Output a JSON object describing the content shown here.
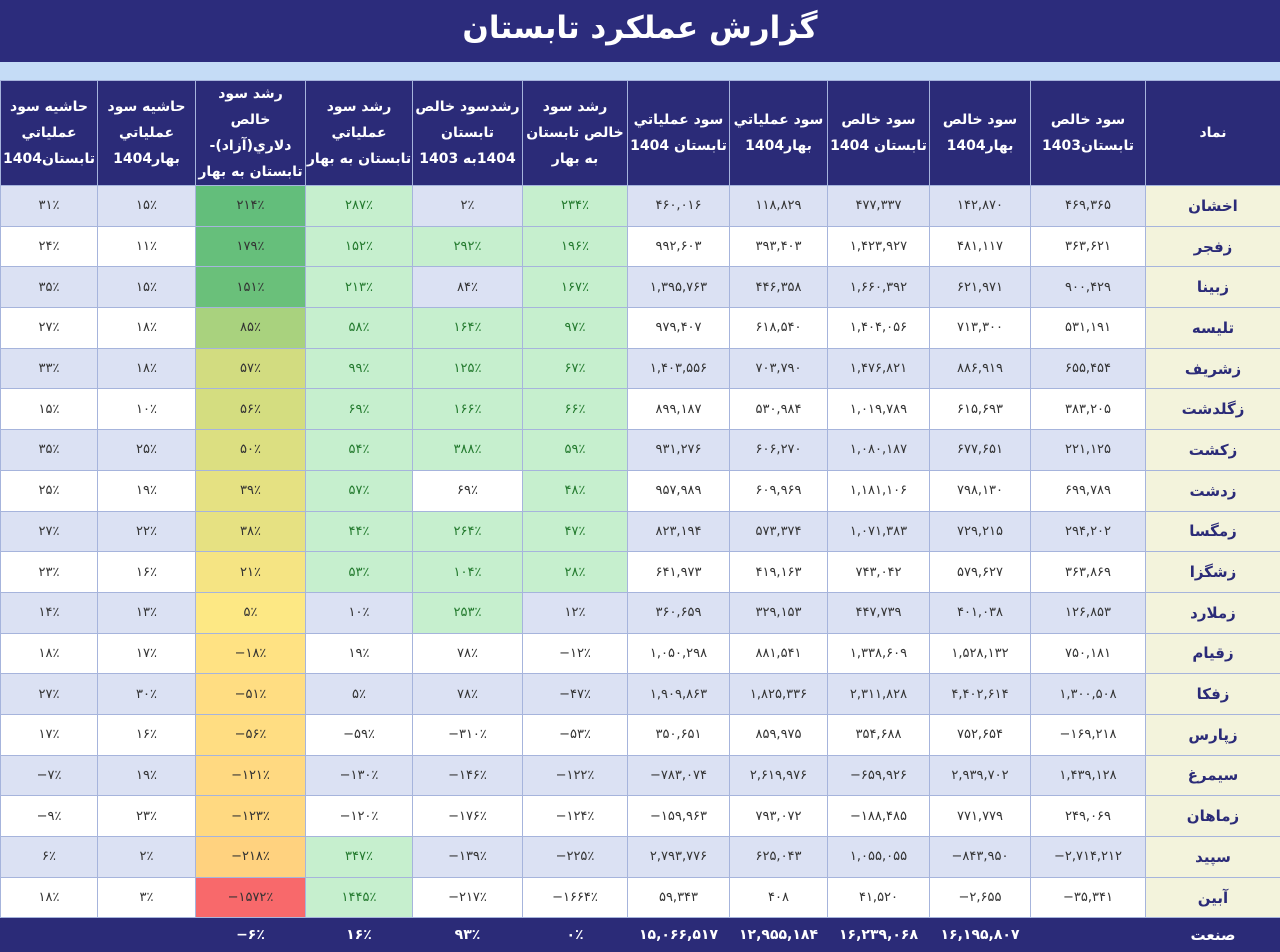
{
  "title": "گزارش عملکرد تابستان",
  "colors": {
    "header_bg": "#2b2b78",
    "row_alt": "#dbe1f3",
    "symbol_bg": "#f3f3dc",
    "positive_fill": "#c6efce",
    "positive_text": "#237a2e"
  },
  "columns": [
    "نماد",
    "سود خالص تابستان1403",
    "سود خالص بهار1404",
    "سود خالص تابستان 1404",
    "سود عملياتي بهار1404",
    "سود عملياتي تابستان 1404",
    "رشد سود خالص تابستان به بهار",
    "رشدسود خالص تابستان 1404به 1403",
    "رشد سود عملياتي تابستان به بهار",
    "رشد سود خالص دلاري(آزاد)- تابستان به بهار",
    "حاشيه سود عملياتي بهار1404",
    "حاشيه سود عملياتي تابستان1404"
  ],
  "rows": [
    {
      "cells": [
        "اخشان",
        "۴۶۹,۳۶۵",
        "۱۴۲,۸۷۰",
        "۴۷۷,۳۳۷",
        "۱۱۸,۸۲۹",
        "۴۶۰,۰۱۶",
        "۲۳۴٪",
        "۲٪",
        "۲۸۷٪",
        "۲۱۴٪",
        "۱۵٪",
        "۳۱٪"
      ],
      "highlight": [
        6,
        8
      ],
      "dollar_color": "#63be7b"
    },
    {
      "cells": [
        "زفجر",
        "۳۶۳,۶۲۱",
        "۴۸۱,۱۱۷",
        "۱,۴۲۳,۹۲۷",
        "۳۹۳,۴۰۳",
        "۹۹۲,۶۰۳",
        "۱۹۶٪",
        "۲۹۲٪",
        "۱۵۲٪",
        "۱۷۹٪",
        "۱۱٪",
        "۲۴٪"
      ],
      "highlight": [
        6,
        7,
        8
      ],
      "dollar_color": "#66bf7b"
    },
    {
      "cells": [
        "زبينا",
        "۹۰۰,۴۲۹",
        "۶۲۱,۹۷۱",
        "۱,۶۶۰,۳۹۲",
        "۴۴۶,۳۵۸",
        "۱,۳۹۵,۷۶۳",
        "۱۶۷٪",
        "۸۴٪",
        "۲۱۳٪",
        "۱۵۱٪",
        "۱۵٪",
        "۳۵٪"
      ],
      "highlight": [
        6,
        8
      ],
      "dollar_color": "#6ac07a"
    },
    {
      "cells": [
        "تليسه",
        "۵۳۱,۱۹۱",
        "۷۱۳,۳۰۰",
        "۱,۴۰۴,۰۵۶",
        "۶۱۸,۵۴۰",
        "۹۷۹,۴۰۷",
        "۹۷٪",
        "۱۶۴٪",
        "۵۸٪",
        "۸۵٪",
        "۱۸٪",
        "۲۷٪"
      ],
      "highlight": [
        6,
        7,
        8
      ],
      "dollar_color": "#a9d27e"
    },
    {
      "cells": [
        "زشريف",
        "۶۵۵,۴۵۴",
        "۸۸۶,۹۱۹",
        "۱,۴۷۶,۸۲۱",
        "۷۰۳,۷۹۰",
        "۱,۴۰۳,۵۵۶",
        "۶۷٪",
        "۱۲۵٪",
        "۹۹٪",
        "۵۷٪",
        "۱۸٪",
        "۳۳٪"
      ],
      "highlight": [
        6,
        7,
        8
      ],
      "dollar_color": "#d2dc80"
    },
    {
      "cells": [
        "زگلدشت",
        "۳۸۳,۲۰۵",
        "۶۱۵,۶۹۳",
        "۱,۰۱۹,۷۸۹",
        "۵۳۰,۹۸۴",
        "۸۹۹,۱۸۷",
        "۶۶٪",
        "۱۶۶٪",
        "۶۹٪",
        "۵۶٪",
        "۱۰٪",
        "۱۵٪"
      ],
      "highlight": [
        6,
        7,
        8
      ],
      "dollar_color": "#d4dd80"
    },
    {
      "cells": [
        "زکشت",
        "۲۲۱,۱۲۵",
        "۶۷۷,۶۵۱",
        "۱,۰۸۰,۱۸۷",
        "۶۰۶,۲۷۰",
        "۹۳۱,۲۷۶",
        "۵۹٪",
        "۳۸۸٪",
        "۵۴٪",
        "۵۰٪",
        "۲۵٪",
        "۳۵٪"
      ],
      "highlight": [
        6,
        7,
        8
      ],
      "dollar_color": "#dcdf81"
    },
    {
      "cells": [
        "زدشت",
        "۶۹۹,۷۸۹",
        "۷۹۸,۱۳۰",
        "۱,۱۸۱,۱۰۶",
        "۶۰۹,۹۶۹",
        "۹۵۷,۹۸۹",
        "۴۸٪",
        "۶۹٪",
        "۵۷٪",
        "۳۹٪",
        "۱۹٪",
        "۲۵٪"
      ],
      "highlight": [
        6,
        8
      ],
      "dollar_color": "#e5e182"
    },
    {
      "cells": [
        "زمگسا",
        "۲۹۴,۲۰۲",
        "۷۲۹,۲۱۵",
        "۱,۰۷۱,۳۸۳",
        "۵۷۳,۳۷۴",
        "۸۲۳,۱۹۴",
        "۴۷٪",
        "۲۶۴٪",
        "۴۴٪",
        "۳۸٪",
        "۲۲٪",
        "۲۷٪"
      ],
      "highlight": [
        6,
        7,
        8
      ],
      "dollar_color": "#e6e182"
    },
    {
      "cells": [
        "زشگزا",
        "۳۶۳,۸۶۹",
        "۵۷۹,۶۲۷",
        "۷۴۳,۰۴۲",
        "۴۱۹,۱۶۳",
        "۶۴۱,۹۷۳",
        "۲۸٪",
        "۱۰۴٪",
        "۵۳٪",
        "۲۱٪",
        "۱۶٪",
        "۲۳٪"
      ],
      "highlight": [
        6,
        7,
        8
      ],
      "dollar_color": "#f5e483"
    },
    {
      "cells": [
        "زملارد",
        "۱۲۶,۸۵۳",
        "۴۰۱,۰۳۸",
        "۴۴۷,۷۳۹",
        "۳۲۹,۱۵۳",
        "۳۶۰,۶۵۹",
        "۱۲٪",
        "۲۵۳٪",
        "۱۰٪",
        "۵٪",
        "۱۳٪",
        "۱۴٪"
      ],
      "highlight": [
        7
      ],
      "dollar_color": "#fde884"
    },
    {
      "cells": [
        "زقيام",
        "۷۵۰,۱۸۱",
        "۱,۵۲۸,۱۳۲",
        "۱,۳۳۸,۶۰۹",
        "۸۸۱,۵۴۱",
        "۱,۰۵۰,۲۹۸",
        "−۱۲٪",
        "۷۸٪",
        "۱۹٪",
        "−۱۸٪",
        "۱۷٪",
        "۱۸٪"
      ],
      "highlight": [],
      "dollar_color": "#ffe283"
    },
    {
      "cells": [
        "زفکا",
        "۱,۳۰۰,۵۰۸",
        "۴,۴۰۲,۶۱۴",
        "۲,۳۱۱,۸۲۸",
        "۱,۸۲۵,۳۳۶",
        "۱,۹۰۹,۸۶۳",
        "−۴۷٪",
        "۷۸٪",
        "۵٪",
        "−۵۱٪",
        "۳۰٪",
        "۲۷٪"
      ],
      "highlight": [],
      "dollar_color": "#ffdd82"
    },
    {
      "cells": [
        "زپارس",
        "−۱۶۹,۲۱۸",
        "۷۵۲,۶۵۴",
        "۳۵۴,۶۸۸",
        "۸۵۹,۹۷۵",
        "۳۵۰,۶۵۱",
        "−۵۳٪",
        "−۳۱۰٪",
        "−۵۹٪",
        "−۵۶٪",
        "۱۶٪",
        "۱۷٪"
      ],
      "highlight": [],
      "dollar_color": "#ffdd82"
    },
    {
      "cells": [
        "سيمرغ",
        "۱,۴۳۹,۱۲۸",
        "۲,۹۳۹,۷۰۲",
        "−۶۵۹,۹۲۶",
        "۲,۶۱۹,۹۷۶",
        "−۷۸۳,۰۷۴",
        "−۱۲۲٪",
        "−۱۴۶٪",
        "−۱۳۰٪",
        "−۱۲۱٪",
        "۱۹٪",
        "−۷٪"
      ],
      "highlight": [],
      "dollar_color": "#ffd981"
    },
    {
      "cells": [
        "زماهان",
        "۲۴۹,۰۶۹",
        "۷۷۱,۷۷۹",
        "−۱۸۸,۴۸۵",
        "۷۹۳,۰۷۲",
        "−۱۵۹,۹۶۳",
        "−۱۲۴٪",
        "−۱۷۶٪",
        "−۱۲۰٪",
        "−۱۲۳٪",
        "۲۳٪",
        "−۹٪"
      ],
      "highlight": [],
      "dollar_color": "#ffd981"
    },
    {
      "cells": [
        "سپيد",
        "−۲,۷۱۴,۲۱۲",
        "−۸۴۳,۹۵۰",
        "۱,۰۵۵,۰۵۵",
        "۶۲۵,۰۴۳",
        "۲,۷۹۳,۷۷۶",
        "−۲۲۵٪",
        "−۱۳۹٪",
        "۳۴۷٪",
        "−۲۱۸٪",
        "۲٪",
        "۶٪"
      ],
      "highlight": [
        8
      ],
      "dollar_color": "#ffd27f"
    },
    {
      "cells": [
        "آبين",
        "−۳۵,۳۴۱",
        "−۲,۶۵۵",
        "۴۱,۵۲۰",
        "۴۰۸",
        "۵۹,۳۴۳",
        "−۱۶۶۴٪",
        "−۲۱۷٪",
        "۱۴۴۵٪",
        "−۱۵۷۲٪",
        "۳٪",
        "۱۸٪"
      ],
      "highlight": [
        8
      ],
      "dollar_color": "#f8696b"
    }
  ],
  "footer": {
    "cells": [
      "صنعت",
      "",
      "۱۶,۱۹۵,۸۰۷",
      "۱۶,۲۳۹,۰۶۸",
      "۱۲,۹۵۵,۱۸۴",
      "۱۵,۰۶۶,۵۱۷",
      "۰٪",
      "۹۳٪",
      "۱۶٪",
      "−۶٪",
      "",
      ""
    ]
  }
}
